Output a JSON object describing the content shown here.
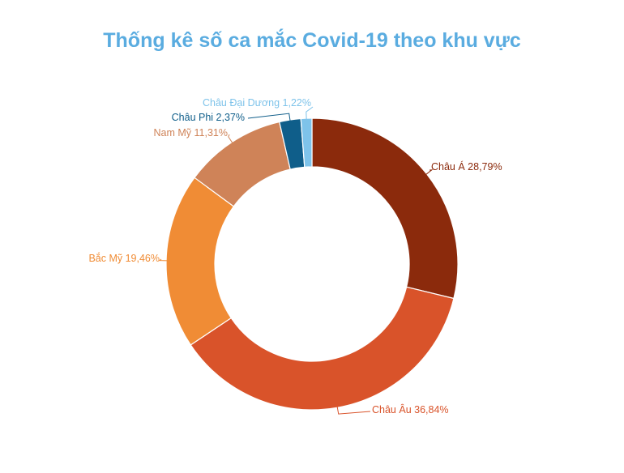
{
  "chart_data": {
    "type": "pie",
    "donut": true,
    "title": "Thống kê số ca mắc Covid-19 theo khu vực",
    "slices": [
      {
        "label": "Châu Á",
        "display": "28,79%",
        "value": 28.79,
        "color": "#8b2a0c"
      },
      {
        "label": "Châu Âu",
        "display": "36,84%",
        "value": 36.84,
        "color": "#d9532a"
      },
      {
        "label": "Bắc Mỹ",
        "display": "19,46%",
        "value": 19.46,
        "color": "#f08c35"
      },
      {
        "label": "Nam Mỹ",
        "display": "11,31%",
        "value": 11.31,
        "color": "#cf8358"
      },
      {
        "label": "Châu Phi",
        "display": "2,37%",
        "value": 2.37,
        "color": "#0f5e8a"
      },
      {
        "label": "Châu Đại Dương",
        "display": "1,22%",
        "value": 1.22,
        "color": "#7ec3ea"
      }
    ],
    "legend": "none"
  }
}
